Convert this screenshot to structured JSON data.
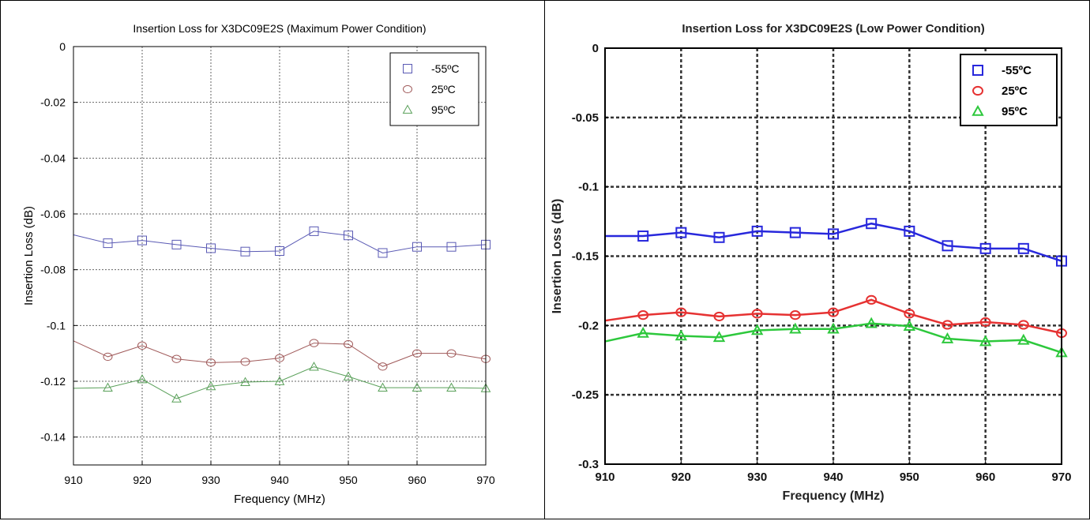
{
  "chart_data": [
    {
      "type": "line",
      "title": "Insertion Loss for X3DC09E2S (Maximum Power Condition)",
      "xlabel": "Frequency (MHz)",
      "ylabel": "Insertion Loss (dB)",
      "xlim": [
        910,
        970
      ],
      "ylim": [
        -0.15,
        0
      ],
      "xticks": [
        "910",
        "920",
        "930",
        "940",
        "950",
        "960",
        "970"
      ],
      "yticks": [
        "0",
        "-0.02",
        "-0.04",
        "-0.06",
        "-0.08",
        "-0.1",
        "-0.12",
        "-0.14"
      ],
      "grid": true,
      "legend_position": "top-right",
      "x": [
        915,
        920,
        925,
        930,
        935,
        940,
        945,
        950,
        955,
        960,
        965,
        970
      ],
      "series": [
        {
          "name": "-55ºC",
          "marker": "square",
          "color": "#5a5ab4",
          "start": -0.0675,
          "values": [
            -0.0705,
            -0.0695,
            -0.071,
            -0.0723,
            -0.0735,
            -0.0733,
            -0.0662,
            -0.0677,
            -0.074,
            -0.0718,
            -0.0718,
            -0.071
          ]
        },
        {
          "name": "25ºC",
          "marker": "circle",
          "color": "#a05a5a",
          "start": -0.1055,
          "values": [
            -0.1112,
            -0.1072,
            -0.112,
            -0.1133,
            -0.113,
            -0.1117,
            -0.1063,
            -0.1067,
            -0.1147,
            -0.11,
            -0.11,
            -0.112
          ]
        },
        {
          "name": "95ºC",
          "marker": "triangle",
          "color": "#5aa05a",
          "start": -0.1225,
          "values": [
            -0.1223,
            -0.1193,
            -0.1262,
            -0.1218,
            -0.1203,
            -0.12,
            -0.1148,
            -0.1183,
            -0.1223,
            -0.1223,
            -0.1223,
            -0.1225
          ]
        }
      ]
    },
    {
      "type": "line",
      "title": "Insertion Loss for X3DC09E2S (Low Power Condition)",
      "xlabel": "Frequency (MHz)",
      "ylabel": "Insertion Loss (dB)",
      "xlim": [
        910,
        970
      ],
      "ylim": [
        -0.3,
        0
      ],
      "xticks": [
        "910",
        "920",
        "930",
        "940",
        "950",
        "960",
        "970"
      ],
      "yticks": [
        "0",
        "-0.05",
        "-0.1",
        "-0.15",
        "-0.2",
        "-0.25",
        "-0.3"
      ],
      "grid": true,
      "legend_position": "top-right",
      "x": [
        915,
        920,
        925,
        930,
        935,
        940,
        945,
        950,
        955,
        960,
        965,
        970
      ],
      "series": [
        {
          "name": "-55ºC",
          "marker": "square",
          "color": "#2828dc",
          "start": -0.1355,
          "values": [
            -0.1355,
            -0.133,
            -0.1365,
            -0.132,
            -0.133,
            -0.134,
            -0.1265,
            -0.132,
            -0.1425,
            -0.1445,
            -0.1445,
            -0.1535
          ]
        },
        {
          "name": "25ºC",
          "marker": "circle",
          "color": "#e63232",
          "start": -0.1965,
          "values": [
            -0.1925,
            -0.1905,
            -0.1935,
            -0.1915,
            -0.1925,
            -0.1905,
            -0.1815,
            -0.1915,
            -0.1995,
            -0.1975,
            -0.1995,
            -0.2055
          ]
        },
        {
          "name": "95ºC",
          "marker": "triangle",
          "color": "#2dc83c",
          "start": -0.2115,
          "values": [
            -0.2055,
            -0.2075,
            -0.2085,
            -0.2035,
            -0.2025,
            -0.2025,
            -0.1985,
            -0.2005,
            -0.2095,
            -0.2115,
            -0.2105,
            -0.2195
          ]
        }
      ]
    }
  ]
}
